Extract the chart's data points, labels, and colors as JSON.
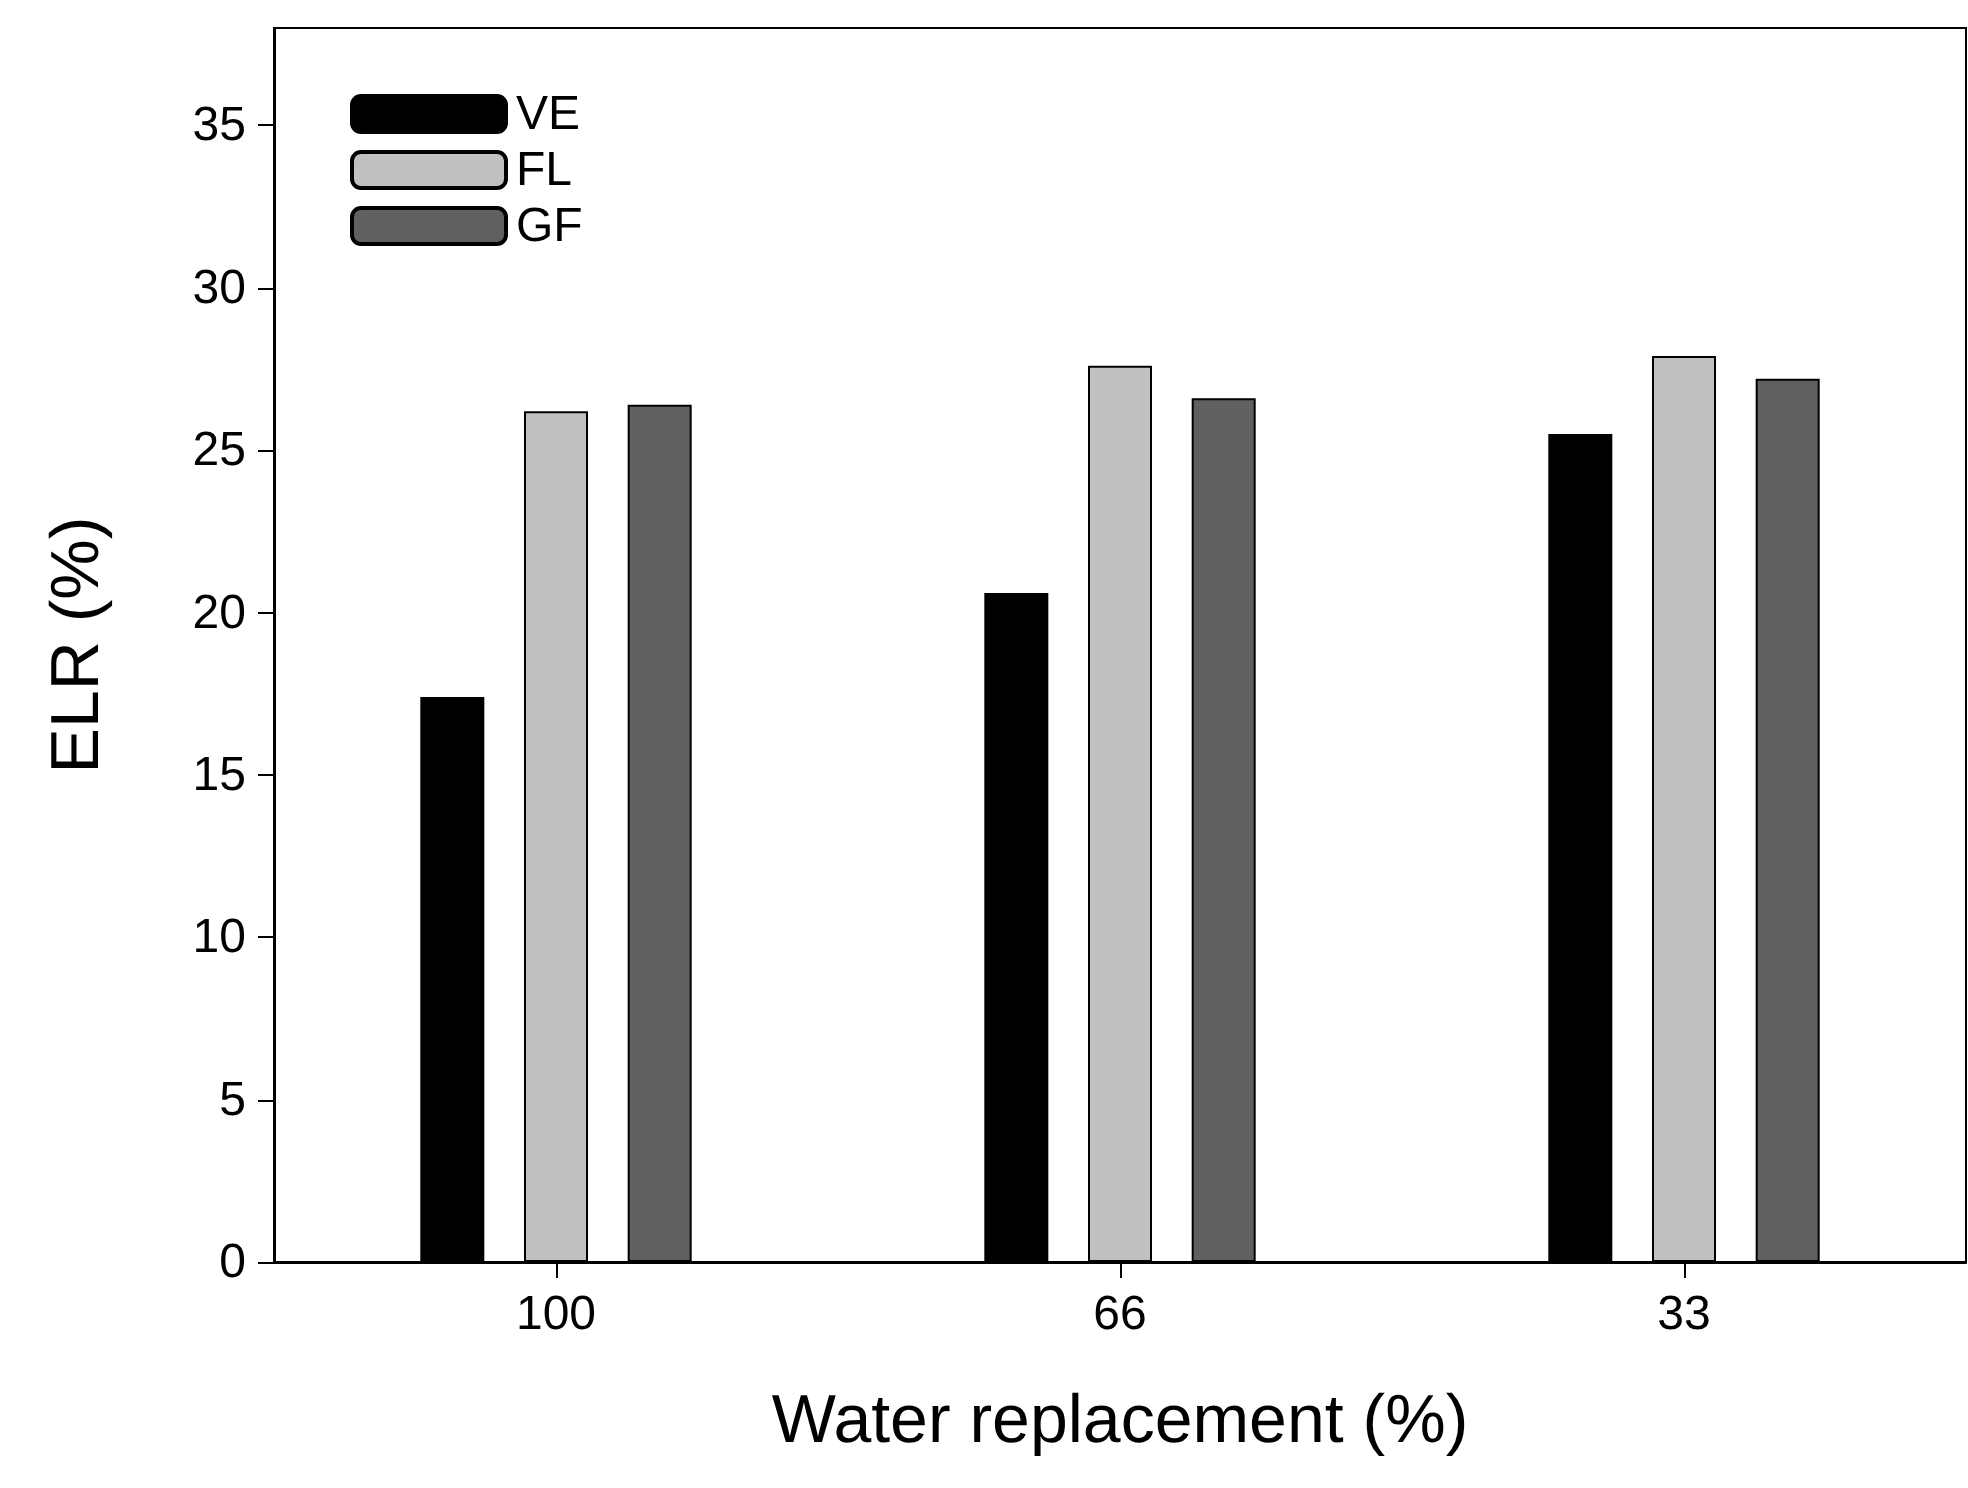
{
  "chart_data": {
    "type": "bar",
    "xlabel": "Water replacement (%)",
    "ylabel": "ELR (%)",
    "categories": [
      "100",
      "66",
      "33"
    ],
    "series": [
      {
        "name": "VE",
        "color": "#000000",
        "values": [
          17.4,
          20.6,
          25.5
        ]
      },
      {
        "name": "FL",
        "color": "#c0c0c0",
        "values": [
          26.2,
          27.6,
          27.9
        ]
      },
      {
        "name": "GF",
        "color": "#606060",
        "values": [
          26.4,
          26.6,
          27.2
        ]
      }
    ],
    "ylim": [
      0,
      38
    ],
    "yticks": [
      0,
      5,
      10,
      15,
      20,
      25,
      30,
      35
    ],
    "grid": false,
    "legend": "top left"
  }
}
